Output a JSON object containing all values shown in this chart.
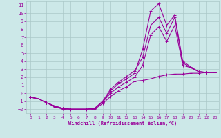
{
  "xlabel": "Windchill (Refroidissement éolien,°C)",
  "xlim": [
    -0.5,
    23.5
  ],
  "ylim": [
    -2.5,
    11.5
  ],
  "xticks": [
    0,
    1,
    2,
    3,
    4,
    5,
    6,
    7,
    8,
    9,
    10,
    11,
    12,
    13,
    14,
    15,
    16,
    17,
    18,
    19,
    20,
    21,
    22,
    23
  ],
  "yticks": [
    -2,
    -1,
    0,
    1,
    2,
    3,
    4,
    5,
    6,
    7,
    8,
    9,
    10,
    11
  ],
  "background_color": "#cce8e8",
  "grid_color": "#aac8c8",
  "line_color": "#990099",
  "line_width": 0.8,
  "marker": "+",
  "markersize": 3,
  "markeredgewidth": 0.7,
  "x_data": [
    0,
    1,
    2,
    3,
    4,
    5,
    6,
    7,
    8,
    9,
    10,
    11,
    12,
    13,
    14,
    15,
    16,
    17,
    18,
    19,
    20,
    21,
    22,
    23
  ],
  "series": [
    [
      -0.5,
      -0.7,
      -1.2,
      -1.7,
      -2.0,
      -2.1,
      -2.1,
      -2.1,
      -2.0,
      -1.3,
      -0.4,
      0.3,
      0.8,
      1.5,
      1.6,
      1.8,
      2.1,
      2.3,
      2.4,
      2.4,
      2.5,
      2.5,
      2.6,
      2.6
    ],
    [
      -0.5,
      -0.7,
      -1.2,
      -1.6,
      -1.9,
      -2.0,
      -2.0,
      -2.0,
      -1.9,
      -1.1,
      0.0,
      0.8,
      1.4,
      2.0,
      3.5,
      7.3,
      8.3,
      6.5,
      8.5,
      3.5,
      3.2,
      2.7,
      2.6,
      2.6
    ],
    [
      -0.5,
      -0.7,
      -1.2,
      -1.6,
      -1.9,
      -2.0,
      -2.0,
      -2.0,
      -1.9,
      -1.1,
      0.3,
      1.2,
      1.8,
      2.5,
      5.5,
      10.3,
      11.2,
      8.5,
      9.8,
      4.0,
      3.3,
      2.7,
      2.6,
      2.6
    ],
    [
      -0.5,
      -0.7,
      -1.2,
      -1.6,
      -1.9,
      -2.0,
      -2.0,
      -2.0,
      -1.9,
      -1.0,
      0.5,
      1.4,
      2.1,
      2.8,
      4.5,
      8.5,
      9.5,
      7.5,
      9.5,
      3.8,
      3.2,
      2.7,
      2.6,
      2.6
    ]
  ]
}
